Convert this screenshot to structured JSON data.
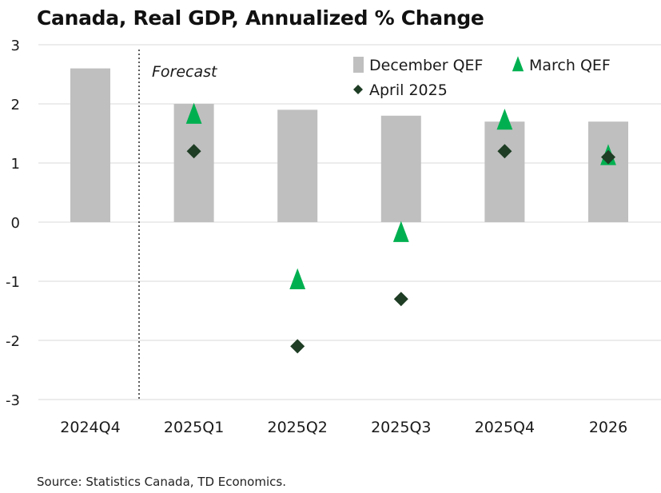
{
  "page": {
    "title": "Canada, Real GDP, Annualized % Change",
    "source": "Source: Statistics Canada, TD Economics."
  },
  "chart_data": {
    "type": "bar",
    "title": "Canada, Real GDP, Annualized % Change",
    "xlabel": "",
    "ylabel": "",
    "ylim": [
      -3,
      3
    ],
    "yticks": [
      3,
      2,
      1,
      0,
      -1,
      -2,
      -3
    ],
    "grid": true,
    "legend_position": "top-right",
    "annotation": "Forecast",
    "forecast_divider_after": "2024Q4",
    "categories": [
      "2024Q4",
      "2025Q1",
      "2025Q2",
      "2025Q3",
      "2025Q4",
      "2026"
    ],
    "series": [
      {
        "name": "December QEF",
        "kind": "bar",
        "color": "#bfbfbf",
        "values": [
          2.6,
          2.0,
          1.9,
          1.8,
          1.7,
          1.7
        ]
      },
      {
        "name": "March QEF",
        "kind": "triangle",
        "color": "#00b050",
        "values": [
          null,
          1.8,
          -1.0,
          -0.2,
          1.7,
          1.1
        ]
      },
      {
        "name": "April 2025",
        "kind": "diamond",
        "color": "#1e3d24",
        "values": [
          null,
          1.2,
          -2.1,
          -1.3,
          1.2,
          1.1
        ]
      }
    ]
  }
}
